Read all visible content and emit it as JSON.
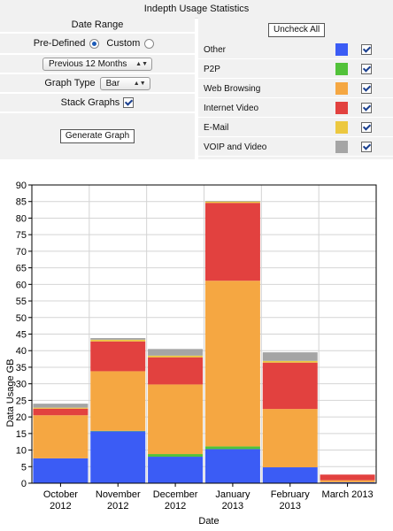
{
  "header": {
    "title": "Indepth Usage Statistics"
  },
  "controls": {
    "date_range_label": "Date Range",
    "predefined_label": "Pre-Defined",
    "custom_label": "Custom",
    "period_value": "Previous 12 Months",
    "graph_type_label": "Graph Type",
    "graph_type_value": "Bar",
    "stack_label": "Stack Graphs",
    "generate_label": "Generate Graph"
  },
  "traffic": {
    "uncheck_all_label": "Uncheck All",
    "items": [
      {
        "label": "Other",
        "color": "#3b5cf5",
        "checked": true
      },
      {
        "label": "P2P",
        "color": "#52c23a",
        "checked": true
      },
      {
        "label": "Web Browsing",
        "color": "#f5a742",
        "checked": true
      },
      {
        "label": "Internet Video",
        "color": "#e2413f",
        "checked": true
      },
      {
        "label": "E-Mail",
        "color": "#ecc840",
        "checked": true
      },
      {
        "label": "VOIP and Video",
        "color": "#a5a5a5",
        "checked": true
      }
    ]
  },
  "chart_data": {
    "type": "bar",
    "stacked": true,
    "categories": [
      "October 2012",
      "November 2012",
      "December 2012",
      "January 2013",
      "February 2013",
      "March 2013"
    ],
    "series": [
      {
        "name": "Other",
        "color": "#3b5cf5",
        "values": [
          7.5,
          15.7,
          8.0,
          10.3,
          4.8,
          0.3
        ]
      },
      {
        "name": "P2P",
        "color": "#52c23a",
        "values": [
          0.0,
          0.1,
          0.8,
          0.8,
          0.0,
          0.0
        ]
      },
      {
        "name": "Web Browsing",
        "color": "#f5a742",
        "values": [
          13.0,
          18.0,
          21.0,
          50.0,
          17.6,
          0.6
        ]
      },
      {
        "name": "Internet Video",
        "color": "#e2413f",
        "values": [
          2.0,
          9.0,
          8.2,
          23.5,
          14.0,
          1.7
        ]
      },
      {
        "name": "E-Mail",
        "color": "#ecc840",
        "values": [
          0.3,
          0.5,
          0.5,
          0.4,
          0.5,
          0.0
        ]
      },
      {
        "name": "VOIP and Video",
        "color": "#a5a5a5",
        "values": [
          1.2,
          0.5,
          2.0,
          0.2,
          2.6,
          0.0
        ]
      }
    ],
    "xlabel": "Date",
    "ylabel": "Data Usage GB",
    "ylim": [
      0,
      90
    ],
    "yticks": [
      0,
      5,
      10,
      15,
      20,
      25,
      30,
      35,
      40,
      45,
      50,
      55,
      60,
      65,
      70,
      75,
      80,
      85,
      90
    ],
    "grid": true
  }
}
